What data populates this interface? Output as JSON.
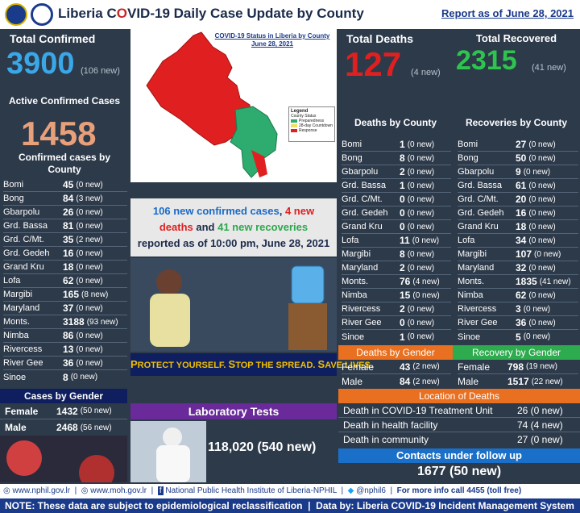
{
  "header": {
    "title_pre": "Liberia C",
    "title_virus": "O",
    "title_post": "VID-19 Daily Case Update by County",
    "report_date": "Report as of June 28, 2021"
  },
  "confirmed": {
    "title": "Total Confirmed",
    "value": "3900",
    "new": "(106 new)",
    "active_title": "Active Confirmed Cases",
    "active_value": "1458",
    "by_county_title": "Confirmed cases by County"
  },
  "map": {
    "title": "COVID-19 Status in Liberia by County",
    "date": "June 28, 2021",
    "legend_title": "Legend",
    "legend_sub": "County Status",
    "legend_items": [
      "Preparedness",
      "28-day Countdown",
      "Response"
    ]
  },
  "colors": {
    "response": "#e02020",
    "preparedness": "#2eab6e",
    "countdown": "#f0e060"
  },
  "deaths": {
    "title": "Total Deaths",
    "value": "127",
    "new": "(4 new)",
    "by_county_title": "Deaths by County"
  },
  "recovered": {
    "title": "Total Recovered",
    "value": "2315",
    "new": "(41 new)",
    "by_county_title": "Recoveries by County"
  },
  "summary": {
    "line1a": "106 new confirmed cases",
    "line1b": ", ",
    "line1c": "4 new",
    "line2a": "deaths",
    "line2b": " and ",
    "line2c": "41 new recoveries",
    "line3": "reported as of 10:00 pm, June 28, 2021"
  },
  "slogan": {
    "p1": "P",
    "p2": "ROTECT YOURSELF.",
    "s1": "S",
    "s2": "TOP THE SPREAD.",
    "v1": "S",
    "v2": "AVE LIVES."
  },
  "chart_data": [
    {
      "type": "table",
      "title": "Confirmed cases by County",
      "rows": [
        {
          "county": "Bomi",
          "value": "45",
          "new": "(0 new)"
        },
        {
          "county": "Bong",
          "value": "84",
          "new": "(3 new)"
        },
        {
          "county": "Gbarpolu",
          "value": "26",
          "new": "(0 new)"
        },
        {
          "county": "Grd. Bassa",
          "value": "81",
          "new": "(0 new)"
        },
        {
          "county": "Grd. C/Mt.",
          "value": "35",
          "new": "(2 new)"
        },
        {
          "county": "Grd. Gedeh",
          "value": "16",
          "new": "(0 new)"
        },
        {
          "county": "Grand Kru",
          "value": "18",
          "new": "(0 new)"
        },
        {
          "county": "Lofa",
          "value": "62",
          "new": "(0 new)"
        },
        {
          "county": "Margibi",
          "value": "165",
          "new": "(8 new)"
        },
        {
          "county": "Maryland",
          "value": "37",
          "new": "(0 new)"
        },
        {
          "county": "Monts.",
          "value": "3188",
          "new": "(93 new)"
        },
        {
          "county": "Nimba",
          "value": "86",
          "new": "(0 new)"
        },
        {
          "county": "Rivercess",
          "value": "13",
          "new": "(0 new)"
        },
        {
          "county": "River Gee",
          "value": "36",
          "new": "(0 new)"
        },
        {
          "county": "Sinoe",
          "value": "8",
          "new": "(0 new)"
        }
      ]
    },
    {
      "type": "table",
      "title": "Deaths by County",
      "rows": [
        {
          "county": "Bomi",
          "value": "1",
          "new": "(0 new)"
        },
        {
          "county": "Bong",
          "value": "8",
          "new": "(0 new)"
        },
        {
          "county": "Gbarpolu",
          "value": "2",
          "new": "(0 new)"
        },
        {
          "county": "Grd. Bassa",
          "value": "1",
          "new": "(0 new)"
        },
        {
          "county": "Grd. C/Mt.",
          "value": "0",
          "new": "(0 new)"
        },
        {
          "county": "Grd. Gedeh",
          "value": "0",
          "new": "(0 new)"
        },
        {
          "county": "Grand Kru",
          "value": "0",
          "new": "(0 new)"
        },
        {
          "county": "Lofa",
          "value": "11",
          "new": "(0 new)"
        },
        {
          "county": "Margibi",
          "value": "8",
          "new": "(0 new)"
        },
        {
          "county": "Maryland",
          "value": "2",
          "new": "(0 new)"
        },
        {
          "county": "Monts.",
          "value": "76",
          "new": "(4 new)"
        },
        {
          "county": "Nimba",
          "value": "15",
          "new": "(0 new)"
        },
        {
          "county": "Rivercess",
          "value": "2",
          "new": "(0 new)"
        },
        {
          "county": "River Gee",
          "value": "0",
          "new": "(0 new)"
        },
        {
          "county": "Sinoe",
          "value": "1",
          "new": "(0 new)"
        }
      ]
    },
    {
      "type": "table",
      "title": "Recoveries by County",
      "rows": [
        {
          "county": "Bomi",
          "value": "27",
          "new": "(0 new)"
        },
        {
          "county": "Bong",
          "value": "50",
          "new": "(0 new)"
        },
        {
          "county": "Gbarpolu",
          "value": "9",
          "new": "(0 new)"
        },
        {
          "county": "Grd. Bassa",
          "value": "61",
          "new": "(0 new)"
        },
        {
          "county": "Grd. C/Mt.",
          "value": "20",
          "new": "(0 new)"
        },
        {
          "county": "Grd. Gedeh",
          "value": "16",
          "new": "(0 new)"
        },
        {
          "county": "Grand Kru",
          "value": "18",
          "new": "(0 new)"
        },
        {
          "county": "Lofa",
          "value": "34",
          "new": "(0 new)"
        },
        {
          "county": "Margibi",
          "value": "107",
          "new": "(0 new)"
        },
        {
          "county": "Maryland",
          "value": "32",
          "new": "(0 new)"
        },
        {
          "county": "Monts.",
          "value": "1835",
          "new": "(41 new)"
        },
        {
          "county": "Nimba",
          "value": "62",
          "new": "(0 new)"
        },
        {
          "county": "Rivercess",
          "value": "3",
          "new": "(0 new)"
        },
        {
          "county": "River Gee",
          "value": "36",
          "new": "(0 new)"
        },
        {
          "county": "Sinoe",
          "value": "5",
          "new": "(0 new)"
        }
      ]
    }
  ],
  "cases_gender": {
    "title": "Cases by Gender",
    "female_label": "Female",
    "female_value": "1432",
    "female_new": "(50 new)",
    "male_label": "Male",
    "male_value": "2468",
    "male_new": "(56 new)"
  },
  "deaths_gender": {
    "title": "Deaths by Gender",
    "female_label": "Female",
    "female_value": "43",
    "female_new": "(2 new)",
    "male_label": "Male",
    "male_value": "84",
    "male_new": "(2 new)"
  },
  "recovery_gender": {
    "title": "Recovery by Gender",
    "female_label": "Female",
    "female_value": "798",
    "female_new": "(19 new)",
    "male_label": "Male",
    "male_value": "1517",
    "male_new": "(22 new)"
  },
  "lab": {
    "title": "Laboratory Tests",
    "value": "118,020 (540 new)"
  },
  "location": {
    "title": "Location of Deaths",
    "rows": [
      {
        "label": "Death in COVID-19 Treatment Unit",
        "value": "26 (0 new)"
      },
      {
        "label": "Death in health facility",
        "value": "74 (4 new)"
      },
      {
        "label": "Death in community",
        "value": "27 (0 new)"
      }
    ]
  },
  "contacts": {
    "title": "Contacts under follow up",
    "value": "1677 (50 new)"
  },
  "footer": {
    "link1": "www.nphil.gov.lr",
    "link2": "www.moh.gov.lr",
    "link3": "National Public Health Institute of Liberia-NPHIL",
    "link4": "@nphil6",
    "info": "For more info call 4455 (toll free)",
    "note": "NOTE: These data are subject to epidemiological reclassification",
    "source": "Data by: Liberia COVID-19 Incident Management System"
  }
}
